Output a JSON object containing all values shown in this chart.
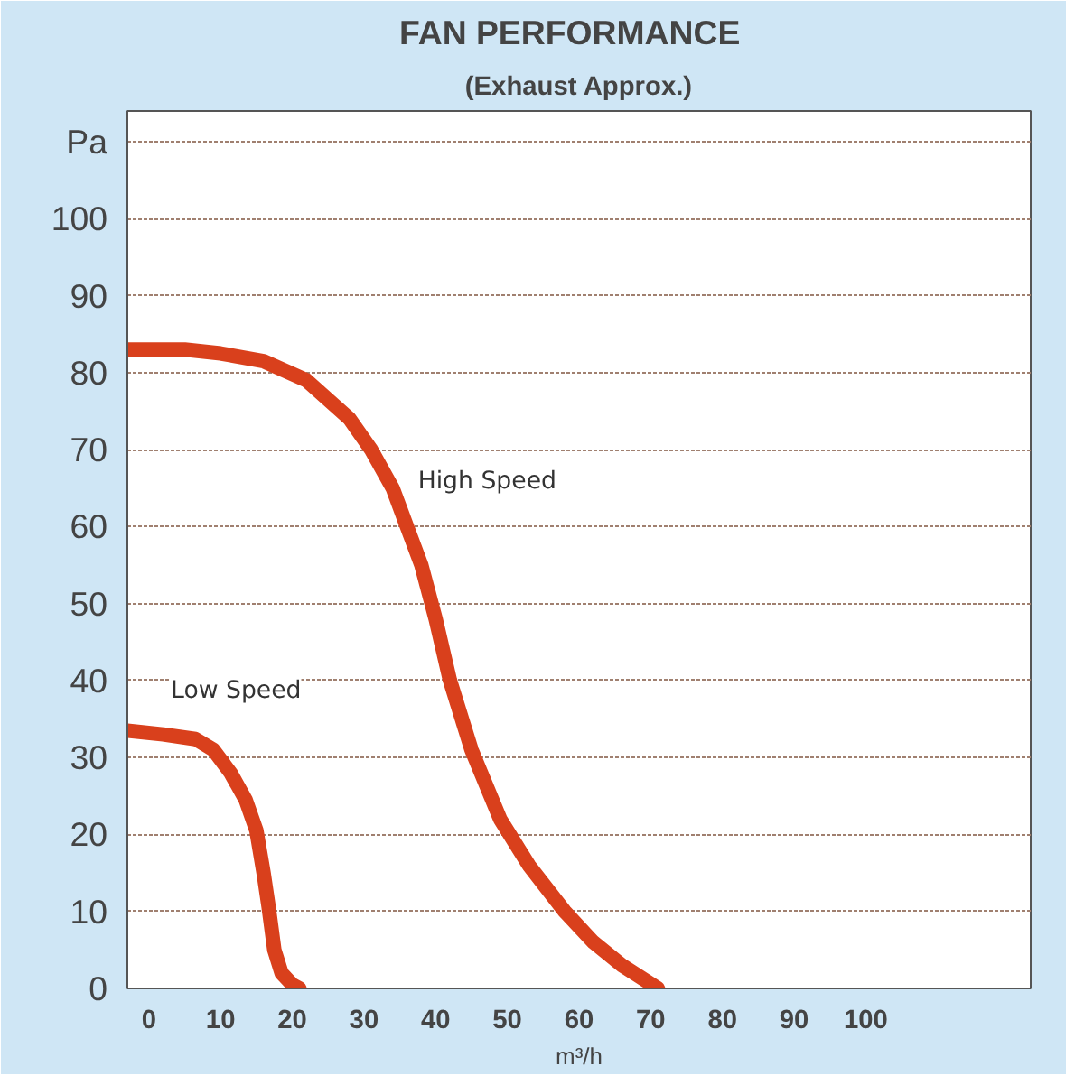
{
  "chart_data": {
    "type": "line",
    "title": "FAN   PERFORMANCE",
    "subtitle": "(Exhaust Approx.)",
    "xlabel": "m³/h",
    "ylabel": "Pa",
    "xlim": [
      -3,
      123
    ],
    "ylim": [
      0,
      114
    ],
    "xticks": [
      0,
      10,
      20,
      30,
      40,
      50,
      60,
      70,
      80,
      90,
      100
    ],
    "yticks": [
      0,
      10,
      20,
      30,
      40,
      50,
      60,
      70,
      80,
      90,
      100,
      {
        "value": 110,
        "label": null
      }
    ],
    "grid": "y",
    "line_style": "solid",
    "series": [
      {
        "name": "High Speed",
        "color": "#d9401c",
        "x": [
          -3,
          5,
          10,
          16,
          22,
          28,
          31,
          34,
          36,
          38,
          40,
          42,
          45,
          49,
          53,
          58,
          62,
          66,
          71
        ],
        "values": [
          83,
          83,
          82.5,
          81.5,
          79,
          74,
          70,
          65,
          60,
          55,
          48,
          40,
          31,
          22,
          16,
          10,
          6,
          3,
          0
        ]
      },
      {
        "name": "Low Speed",
        "color": "#d9401c",
        "x": [
          -3,
          2,
          6.5,
          9,
          11.4,
          13.5,
          15,
          16,
          16.7,
          17.5,
          18.5,
          20,
          21
        ],
        "values": [
          33.5,
          33,
          32.4,
          31,
          28,
          24.5,
          20.5,
          15,
          10.6,
          5,
          2,
          0.5,
          0
        ]
      }
    ]
  }
}
